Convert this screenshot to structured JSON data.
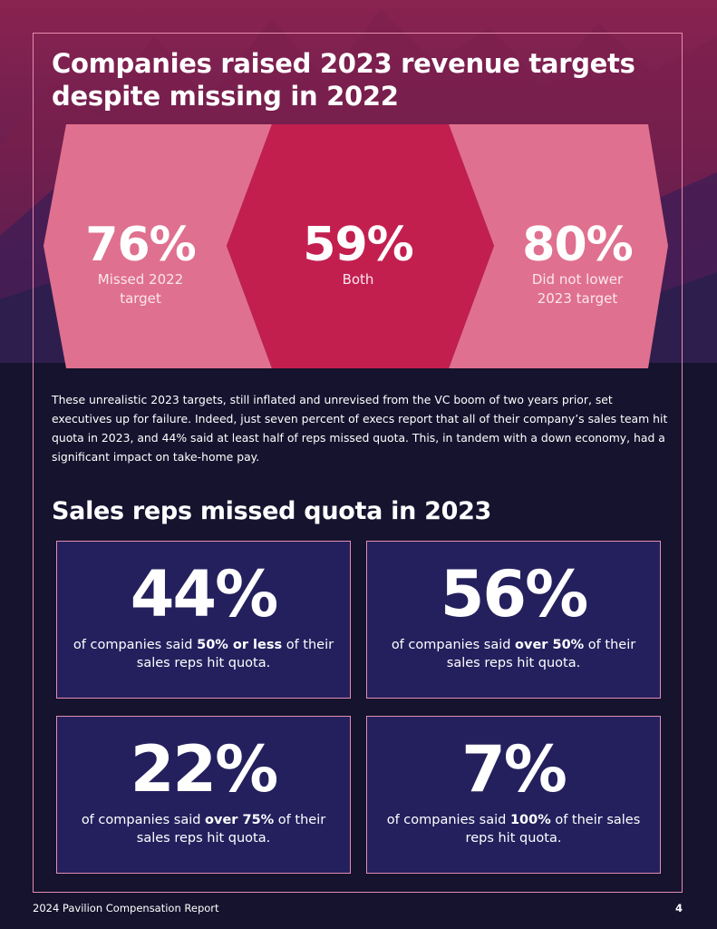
{
  "header": {
    "title": "Companies raised 2023 revenue targets despite missing in 2022"
  },
  "chevron_stats": [
    {
      "value": "76%",
      "label_line1": "Missed 2022",
      "label_line2": "target"
    },
    {
      "value": "59%",
      "label_line1": "Both",
      "label_line2": ""
    },
    {
      "value": "80%",
      "label_line1": "Did not lower",
      "label_line2": "2023 target"
    }
  ],
  "body_paragraph": "These unrealistic 2023 targets, still inflated and unrevised from the VC boom of two years prior, set executives up for failure. Indeed, just seven percent of execs report that all of their company’s sales team hit quota in 2023, and 44% said at least half of reps missed quota. This, in tandem with a down economy, had a significant impact on take-home pay.",
  "section": {
    "title": "Sales reps missed quota in 2023"
  },
  "cards": [
    {
      "value": "44%",
      "prefix": "of companies said ",
      "emphasis": "50% or less",
      "suffix": " of their sales reps hit quota."
    },
    {
      "value": "56%",
      "prefix": "of companies said ",
      "emphasis": "over 50%",
      "suffix": " of their sales reps hit quota."
    },
    {
      "value": "22%",
      "prefix": "of companies said ",
      "emphasis": "over 75%",
      "suffix": " of their sales reps hit quota."
    },
    {
      "value": "7%",
      "prefix": "of companies said ",
      "emphasis": "100%",
      "suffix": " of their sales reps hit quota."
    }
  ],
  "footer": {
    "report_name": "2024 Pavilion Compensation Report",
    "page_number": "4"
  },
  "colors": {
    "background": "#15132e",
    "chevron_outer": "#e0708f",
    "chevron_center": "#c21f4f",
    "card_fill": "#24205e",
    "frame_border": "#e58db0"
  }
}
